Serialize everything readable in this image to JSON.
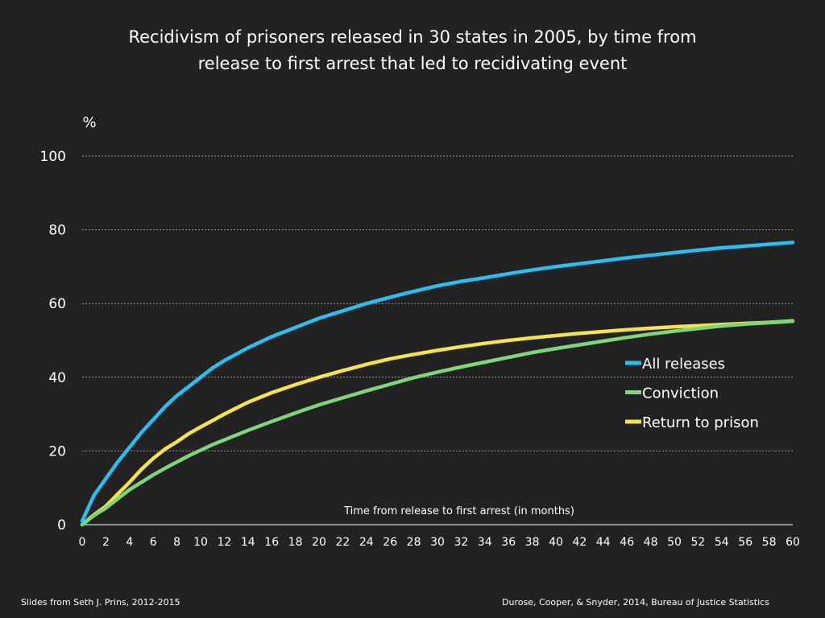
{
  "title_lines": [
    "Recidivism of prisoners released in 30 states in 2005, by time from",
    "release to first arrest that led to recidivating event"
  ],
  "footer": {
    "left": "Slides from Seth J. Prins, 2012-2015",
    "right": "Durose, Cooper, & Snyder,  2014, Bureau of Justice Statistics"
  },
  "colors": {
    "background": "#222222",
    "gridline": "#9a9a9a",
    "axis": "#ffffff",
    "all_releases": "#2bbef0",
    "conviction": "#7fd67a",
    "return_to_prison": "#f6e34a"
  },
  "chart_data": {
    "type": "line",
    "title": "Recidivism of prisoners released in 30 states in 2005, by time from release to first arrest that led to recidivating event",
    "xlabel": "Time from release to first arrest (in months)",
    "ylabel": "%",
    "xlim": [
      0,
      60
    ],
    "ylim": [
      0,
      100
    ],
    "x_ticks": [
      0,
      2,
      4,
      6,
      8,
      10,
      12,
      14,
      16,
      18,
      20,
      22,
      24,
      26,
      28,
      30,
      32,
      34,
      36,
      38,
      40,
      42,
      44,
      46,
      48,
      50,
      52,
      54,
      56,
      58,
      60
    ],
    "y_ticks": [
      0,
      20,
      40,
      60,
      80,
      100
    ],
    "grid": "horizontal dotted",
    "legend_position": "right",
    "x": [
      0,
      1,
      2,
      3,
      4,
      5,
      6,
      7,
      8,
      9,
      10,
      11,
      12,
      14,
      16,
      18,
      20,
      22,
      24,
      26,
      28,
      30,
      32,
      34,
      36,
      38,
      40,
      42,
      44,
      46,
      48,
      50,
      52,
      54,
      56,
      58,
      60
    ],
    "series": [
      {
        "name": "All releases",
        "color": "#2bbef0",
        "values": [
          1,
          8,
          12.5,
          17,
          21,
          25,
          28.5,
          32,
          35,
          37.5,
          40,
          42.5,
          44.5,
          48,
          51,
          53.5,
          56,
          58,
          60,
          61.7,
          63.3,
          64.8,
          66,
          67,
          68.1,
          69.1,
          70,
          70.8,
          71.6,
          72.4,
          73.1,
          73.8,
          74.5,
          75.1,
          75.6,
          76.1,
          76.6
        ]
      },
      {
        "name": "Conviction",
        "color": "#7fd67a",
        "values": [
          0,
          2.5,
          4.5,
          7,
          9.5,
          11.5,
          13.5,
          15.3,
          17,
          18.7,
          20.2,
          21.7,
          23,
          25.6,
          28,
          30.3,
          32.5,
          34.4,
          36.3,
          38.1,
          39.9,
          41.4,
          42.8,
          44.1,
          45.4,
          46.7,
          47.8,
          48.8,
          49.8,
          50.8,
          51.7,
          52.5,
          53.2,
          53.9,
          54.4,
          54.8,
          55.2
        ]
      },
      {
        "name": "Return to prison",
        "color": "#f6e34a",
        "values": [
          0,
          2.7,
          5,
          8.3,
          11.5,
          15,
          18,
          20.5,
          22.5,
          24.7,
          26.5,
          28.2,
          30,
          33.2,
          35.8,
          38,
          40,
          41.8,
          43.5,
          45,
          46.2,
          47.3,
          48.3,
          49.2,
          50,
          50.7,
          51.3,
          51.9,
          52.4,
          52.9,
          53.3,
          53.7,
          54,
          54.3,
          54.6,
          54.9,
          55.3
        ]
      }
    ]
  }
}
